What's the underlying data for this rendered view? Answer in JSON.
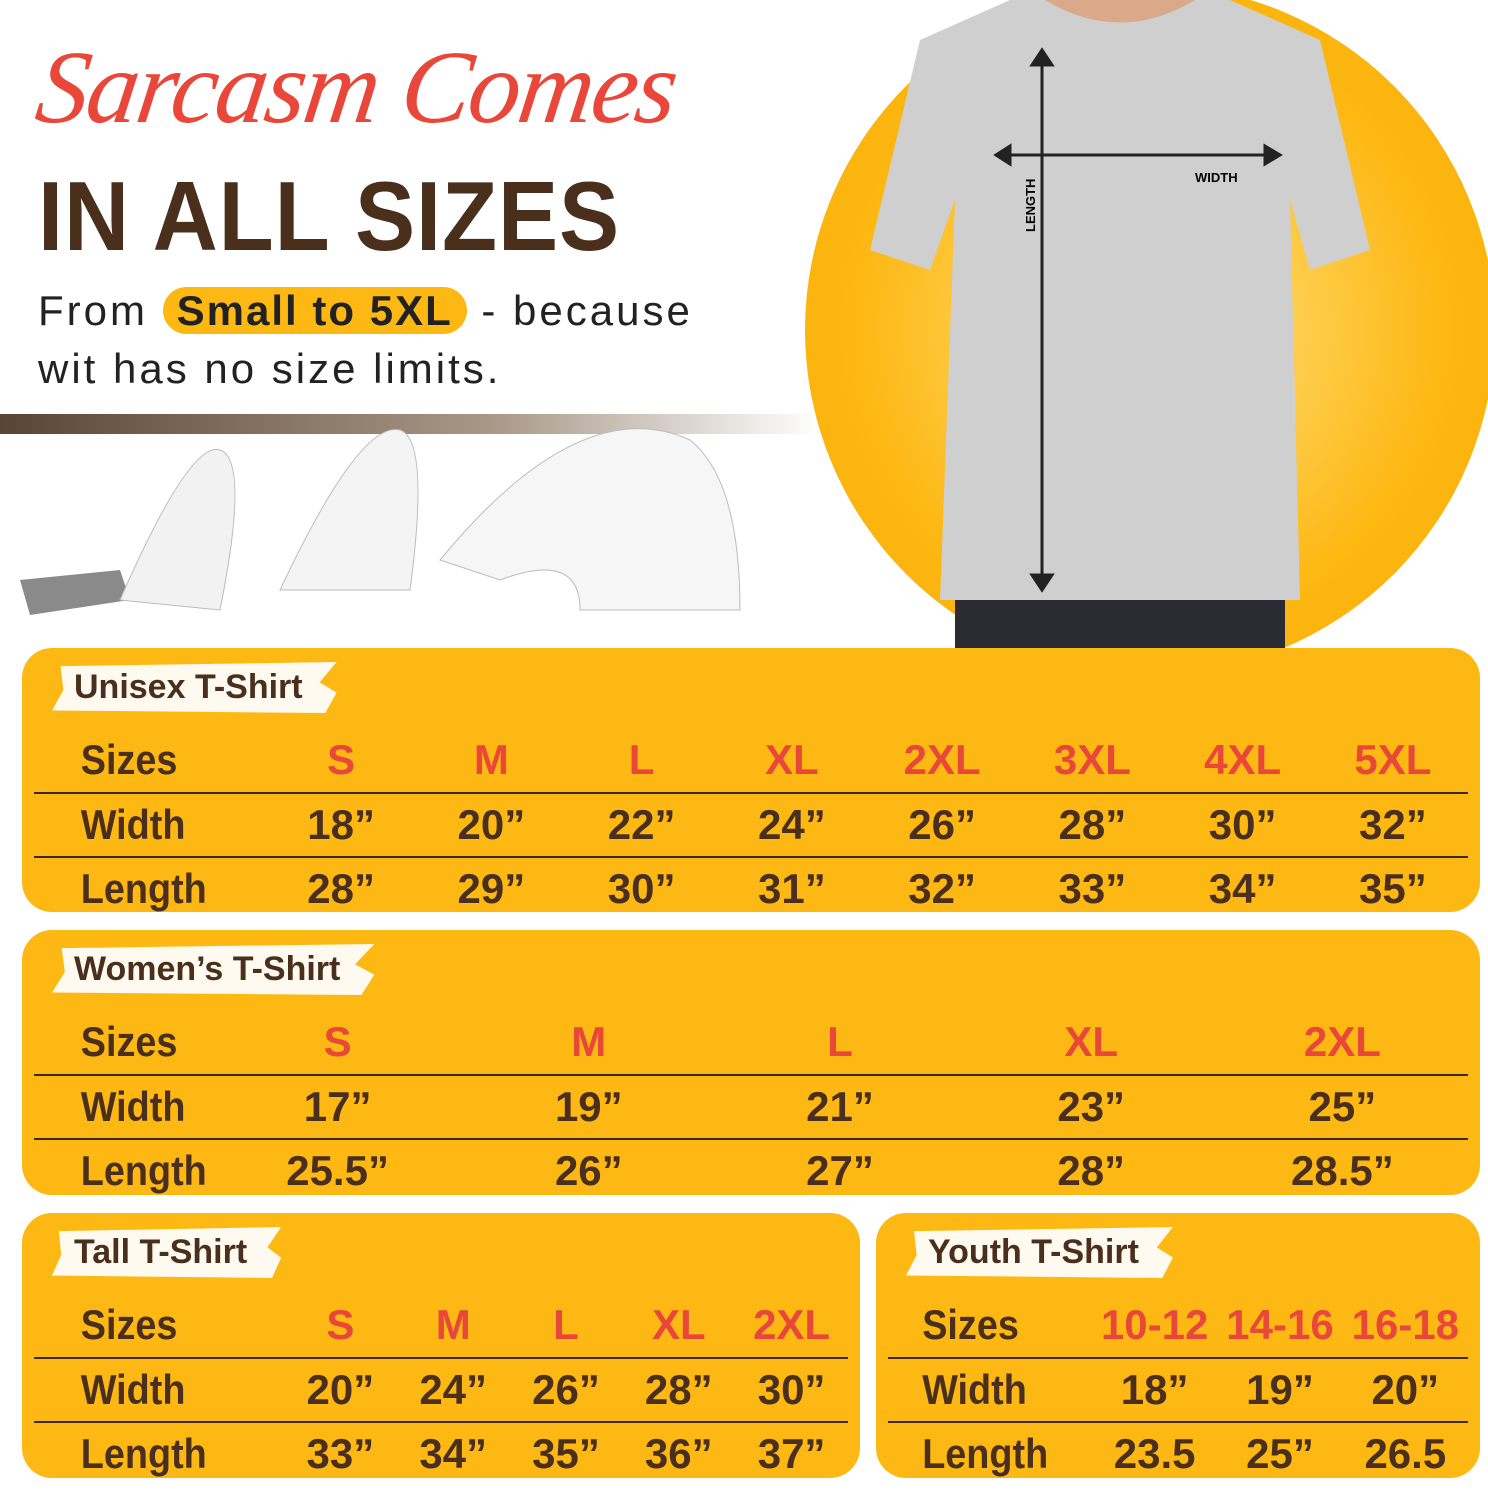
{
  "hero": {
    "script_title": "Sarcasm Comes",
    "title": "IN ALL SIZES",
    "sub_before": "From",
    "sub_highlight": "Small to 5XL",
    "sub_after": "- because",
    "sub_line2": "wit has no size limits.",
    "width_label": "WIDTH",
    "length_label": "LENGTH"
  },
  "colors": {
    "accent": "#fdb813",
    "brown": "#4a2f1d",
    "red": "#e8473a"
  },
  "row_labels": {
    "sizes": "Sizes",
    "width": "Width",
    "length": "Length"
  },
  "tables": {
    "unisex": {
      "title": "Unisex T-Shirt",
      "sizes": [
        "S",
        "M",
        "L",
        "XL",
        "2XL",
        "3XL",
        "4XL",
        "5XL"
      ],
      "width": [
        "18”",
        "20”",
        "22”",
        "24”",
        "26”",
        "28”",
        "30”",
        "32”"
      ],
      "length": [
        "28”",
        "29”",
        "30”",
        "31”",
        "32”",
        "33”",
        "34”",
        "35”"
      ]
    },
    "womens": {
      "title": "Women’s T-Shirt",
      "sizes": [
        "S",
        "M",
        "L",
        "XL",
        "2XL"
      ],
      "width": [
        "17”",
        "19”",
        "21”",
        "23”",
        "25”"
      ],
      "length": [
        "25.5”",
        "26”",
        "27”",
        "28”",
        "28.5”"
      ]
    },
    "tall": {
      "title": "Tall T-Shirt",
      "sizes": [
        "S",
        "M",
        "L",
        "XL",
        "2XL"
      ],
      "width": [
        "20”",
        "24”",
        "26”",
        "28”",
        "30”"
      ],
      "length": [
        "33”",
        "34”",
        "35”",
        "36”",
        "37”"
      ]
    },
    "youth": {
      "title": "Youth T-Shirt",
      "sizes": [
        "10-12",
        "14-16",
        "16-18"
      ],
      "width": [
        "18”",
        "19”",
        "20”"
      ],
      "length": [
        "23.5",
        "25”",
        "26.5"
      ]
    }
  }
}
